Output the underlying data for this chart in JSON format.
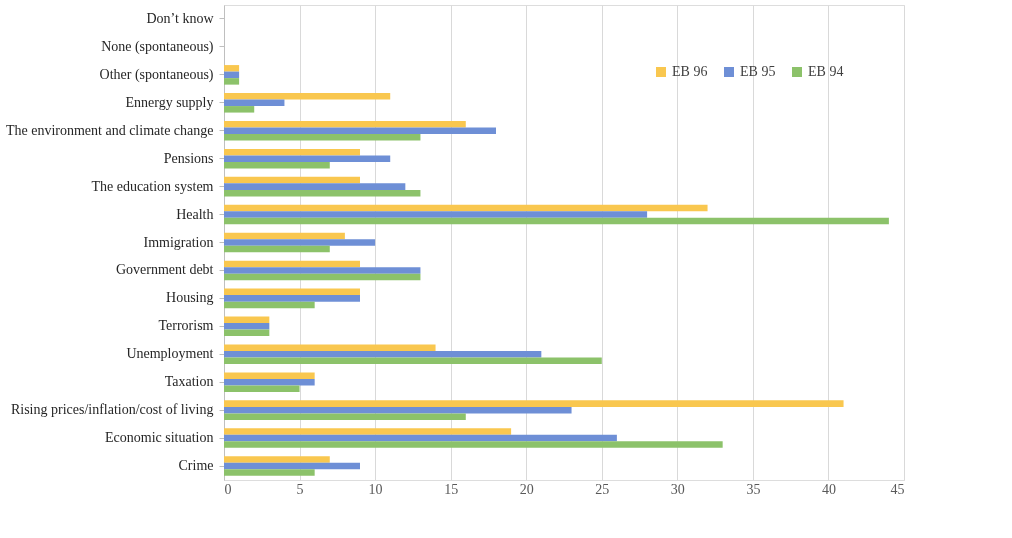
{
  "chart_data": {
    "type": "bar",
    "orientation": "horizontal",
    "categories": [
      "Don’t know",
      "None (spontaneous)",
      "Other (spontaneous)",
      "Ennergy supply",
      "The environment and climate change",
      "Pensions",
      "The education system",
      "Health",
      "Immigration",
      "Government debt",
      "Housing",
      "Terrorism",
      "Unemployment",
      "Taxation",
      "Rising prices/inflation/cost of living",
      "Economic situation",
      "Crime"
    ],
    "series": [
      {
        "name": "EB 96",
        "color": "#f9c74f",
        "values": [
          0,
          0,
          1,
          11,
          16,
          9,
          9,
          32,
          8,
          9,
          9,
          3,
          14,
          6,
          41,
          19,
          7
        ]
      },
      {
        "name": "EB 95",
        "color": "#6e8fd6",
        "values": [
          0,
          0,
          1,
          4,
          18,
          11,
          12,
          28,
          10,
          13,
          9,
          3,
          21,
          6,
          23,
          26,
          9
        ]
      },
      {
        "name": "EB 94",
        "color": "#8cc26a",
        "values": [
          0,
          0,
          1,
          2,
          13,
          7,
          13,
          44,
          7,
          13,
          6,
          3,
          25,
          5,
          16,
          33,
          6
        ]
      }
    ],
    "xlim": [
      0,
      45
    ],
    "xticks": [
      0,
      5,
      10,
      15,
      20,
      25,
      30,
      35,
      40,
      45
    ],
    "grid": "x",
    "legend": "top right"
  }
}
